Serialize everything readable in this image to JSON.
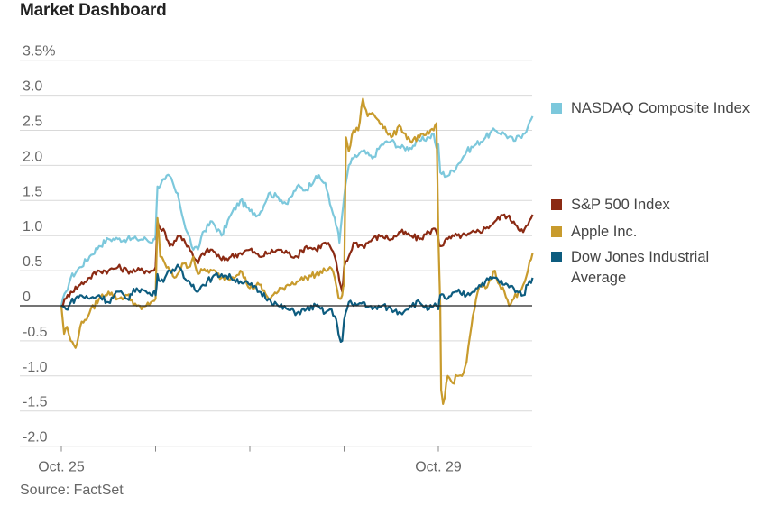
{
  "title": "Market Dashboard",
  "source": "Source: FactSet",
  "chart_data": {
    "type": "line",
    "title": "Market Dashboard",
    "ylabel": "",
    "xlabel": "",
    "ylim": [
      -2.2,
      3.6
    ],
    "y_ticks": [
      {
        "value": 3.5,
        "label": "3.5%"
      },
      {
        "value": 3.0,
        "label": "3.0"
      },
      {
        "value": 2.5,
        "label": "2.5"
      },
      {
        "value": 2.0,
        "label": "2.0"
      },
      {
        "value": 1.5,
        "label": "1.5"
      },
      {
        "value": 1.0,
        "label": "1.0"
      },
      {
        "value": 0.5,
        "label": "0.5"
      },
      {
        "value": 0,
        "label": "0"
      },
      {
        "value": -0.5,
        "label": "-0.5"
      },
      {
        "value": -1.0,
        "label": "-1.0"
      },
      {
        "value": -1.5,
        "label": "-1.5"
      },
      {
        "value": -2.0,
        "label": "-2.0"
      }
    ],
    "xlim": [
      0,
      5.03
    ],
    "x_ticks": [
      {
        "value": 0,
        "label": "Oct. 25"
      },
      {
        "value": 1,
        "label": ""
      },
      {
        "value": 2,
        "label": ""
      },
      {
        "value": 3,
        "label": ""
      },
      {
        "value": 4,
        "label": "Oct. 29"
      }
    ],
    "grid": true,
    "series": [
      {
        "name": "NASDAQ Composite Index",
        "color": "#7cc8dc",
        "x": [
          0,
          0.05,
          0.1,
          0.2,
          0.3,
          0.4,
          0.5,
          0.6,
          0.7,
          0.8,
          0.9,
          0.95,
          0.98,
          1.0,
          1.02,
          1.1,
          1.15,
          1.25,
          1.3,
          1.4,
          1.45,
          1.5,
          1.6,
          1.7,
          1.8,
          1.9,
          2.0,
          2.1,
          2.2,
          2.3,
          2.4,
          2.5,
          2.6,
          2.7,
          2.8,
          2.85,
          2.9,
          2.93,
          2.95,
          2.98,
          3.0,
          3.05,
          3.1,
          3.2,
          3.3,
          3.4,
          3.5,
          3.6,
          3.7,
          3.8,
          3.9,
          3.95,
          3.98,
          4.0,
          4.02,
          4.1,
          4.2,
          4.3,
          4.4,
          4.5,
          4.6,
          4.7,
          4.8,
          4.9,
          4.95,
          5.0
        ],
        "values": [
          0.0,
          0.2,
          0.4,
          0.55,
          0.7,
          0.85,
          0.95,
          0.95,
          0.95,
          0.95,
          0.95,
          0.9,
          0.95,
          1.0,
          1.7,
          1.8,
          1.85,
          1.5,
          1.2,
          0.8,
          0.8,
          1.05,
          1.2,
          1.0,
          1.3,
          1.5,
          1.35,
          1.3,
          1.6,
          1.55,
          1.45,
          1.7,
          1.65,
          1.85,
          1.75,
          1.45,
          1.25,
          1.1,
          0.9,
          1.3,
          1.55,
          2.0,
          2.1,
          2.2,
          2.1,
          2.3,
          2.35,
          2.25,
          2.25,
          2.35,
          2.4,
          2.45,
          2.25,
          2.3,
          1.9,
          1.85,
          2.0,
          2.2,
          2.3,
          2.4,
          2.5,
          2.45,
          2.35,
          2.45,
          2.55,
          2.7
        ]
      },
      {
        "name": "S&P 500 Index",
        "color": "#8b2a13",
        "x": [
          0,
          0.05,
          0.1,
          0.2,
          0.3,
          0.4,
          0.5,
          0.6,
          0.7,
          0.8,
          0.9,
          0.95,
          0.98,
          1.0,
          1.02,
          1.05,
          1.1,
          1.15,
          1.25,
          1.3,
          1.4,
          1.45,
          1.5,
          1.6,
          1.7,
          1.8,
          1.9,
          2.0,
          2.1,
          2.2,
          2.3,
          2.4,
          2.5,
          2.6,
          2.7,
          2.8,
          2.85,
          2.9,
          2.93,
          2.95,
          2.98,
          3.0,
          3.05,
          3.1,
          3.2,
          3.3,
          3.4,
          3.5,
          3.6,
          3.7,
          3.8,
          3.9,
          3.95,
          3.98,
          4.0,
          4.02,
          4.1,
          4.2,
          4.3,
          4.4,
          4.5,
          4.6,
          4.7,
          4.8,
          4.9,
          4.95,
          5.0
        ],
        "values": [
          0.0,
          0.1,
          0.2,
          0.3,
          0.4,
          0.5,
          0.5,
          0.55,
          0.5,
          0.5,
          0.5,
          0.5,
          0.5,
          0.55,
          1.2,
          1.1,
          1.05,
          0.85,
          1.0,
          0.95,
          0.7,
          0.6,
          0.75,
          0.8,
          0.65,
          0.7,
          0.75,
          0.8,
          0.7,
          0.75,
          0.8,
          0.75,
          0.7,
          0.85,
          0.8,
          0.9,
          0.85,
          0.7,
          0.5,
          0.35,
          0.2,
          0.55,
          0.7,
          0.9,
          0.85,
          0.95,
          1.0,
          0.95,
          1.05,
          1.0,
          0.95,
          1.05,
          1.1,
          1.05,
          0.95,
          0.85,
          0.95,
          1.0,
          1.0,
          1.05,
          1.1,
          1.2,
          1.3,
          1.2,
          1.05,
          1.15,
          1.3
        ]
      },
      {
        "name": "Apple Inc.",
        "color": "#c89b2d",
        "x": [
          0,
          0.03,
          0.06,
          0.1,
          0.15,
          0.2,
          0.25,
          0.3,
          0.4,
          0.5,
          0.6,
          0.7,
          0.8,
          0.85,
          0.9,
          0.95,
          1.0,
          1.02,
          1.05,
          1.1,
          1.2,
          1.3,
          1.35,
          1.4,
          1.45,
          1.5,
          1.6,
          1.7,
          1.8,
          1.9,
          2.0,
          2.1,
          2.2,
          2.3,
          2.4,
          2.5,
          2.6,
          2.7,
          2.8,
          2.85,
          2.9,
          2.93,
          2.95,
          2.98,
          3.0,
          3.02,
          3.05,
          3.1,
          3.15,
          3.2,
          3.25,
          3.3,
          3.4,
          3.5,
          3.6,
          3.7,
          3.8,
          3.9,
          3.95,
          3.98,
          4.0,
          4.02,
          4.03,
          4.05,
          4.1,
          4.15,
          4.2,
          4.25,
          4.3,
          4.35,
          4.4,
          4.45,
          4.5,
          4.6,
          4.65,
          4.7,
          4.75,
          4.8,
          4.85,
          4.9,
          4.95,
          5.0
        ],
        "values": [
          0.0,
          -0.4,
          -0.3,
          -0.5,
          -0.6,
          -0.3,
          -0.2,
          -0.1,
          0.1,
          0.2,
          0.1,
          0.15,
          0.0,
          -0.05,
          0.0,
          0.05,
          0.1,
          1.25,
          0.7,
          0.6,
          0.4,
          0.6,
          0.55,
          0.7,
          0.45,
          0.5,
          0.5,
          0.4,
          0.4,
          0.5,
          0.25,
          0.3,
          0.1,
          0.2,
          0.3,
          0.35,
          0.4,
          0.45,
          0.5,
          0.55,
          0.4,
          0.2,
          0.1,
          0.15,
          0.3,
          2.4,
          2.2,
          2.5,
          2.5,
          2.95,
          2.7,
          2.75,
          2.6,
          2.4,
          2.55,
          2.35,
          2.4,
          2.45,
          2.5,
          2.6,
          1.0,
          0.0,
          -1.2,
          -1.4,
          -1.0,
          -1.1,
          -1.0,
          -1.0,
          -0.8,
          -0.3,
          0.1,
          0.3,
          0.25,
          0.5,
          0.3,
          0.2,
          0.0,
          0.1,
          0.2,
          0.3,
          0.5,
          0.75
        ]
      },
      {
        "name": "Dow Jones Industrial Average",
        "color": "#0d5c7f",
        "x": [
          0,
          0.05,
          0.1,
          0.2,
          0.3,
          0.4,
          0.5,
          0.6,
          0.7,
          0.8,
          0.9,
          0.95,
          0.98,
          1.0,
          1.02,
          1.05,
          1.1,
          1.15,
          1.25,
          1.3,
          1.4,
          1.45,
          1.5,
          1.6,
          1.7,
          1.8,
          1.9,
          2.0,
          2.1,
          2.2,
          2.3,
          2.4,
          2.5,
          2.6,
          2.7,
          2.8,
          2.85,
          2.9,
          2.93,
          2.95,
          2.98,
          3.0,
          3.05,
          3.1,
          3.2,
          3.3,
          3.4,
          3.5,
          3.6,
          3.7,
          3.8,
          3.9,
          3.95,
          3.98,
          4.0,
          4.02,
          4.1,
          4.2,
          4.3,
          4.4,
          4.5,
          4.6,
          4.7,
          4.8,
          4.9,
          4.95,
          5.0
        ],
        "values": [
          0.0,
          -0.05,
          0.05,
          0.15,
          0.1,
          0.15,
          0.05,
          0.2,
          0.1,
          0.25,
          0.2,
          0.15,
          0.2,
          0.15,
          0.45,
          0.35,
          0.4,
          0.5,
          0.55,
          0.4,
          0.3,
          0.2,
          0.3,
          0.4,
          0.45,
          0.4,
          0.35,
          0.3,
          0.2,
          0.1,
          0.0,
          -0.05,
          -0.1,
          -0.05,
          0.0,
          -0.1,
          -0.05,
          -0.15,
          -0.3,
          -0.45,
          -0.5,
          -0.2,
          0.05,
          0.0,
          0.05,
          -0.05,
          0.0,
          -0.05,
          -0.1,
          0.0,
          0.05,
          -0.05,
          0.0,
          0.0,
          -0.05,
          0.15,
          0.1,
          0.2,
          0.15,
          0.25,
          0.35,
          0.4,
          0.3,
          0.25,
          0.15,
          0.3,
          0.4
        ]
      }
    ],
    "legend_position": "right"
  },
  "legend": [
    {
      "name": "NASDAQ Composite Index",
      "color": "#7cc8dc"
    },
    {
      "name": "S&P 500 Index",
      "color": "#8b2a13"
    },
    {
      "name": "Apple Inc.",
      "color": "#c89b2d"
    },
    {
      "name": "Dow Jones Industrial Average",
      "color": "#0d5c7f"
    }
  ]
}
